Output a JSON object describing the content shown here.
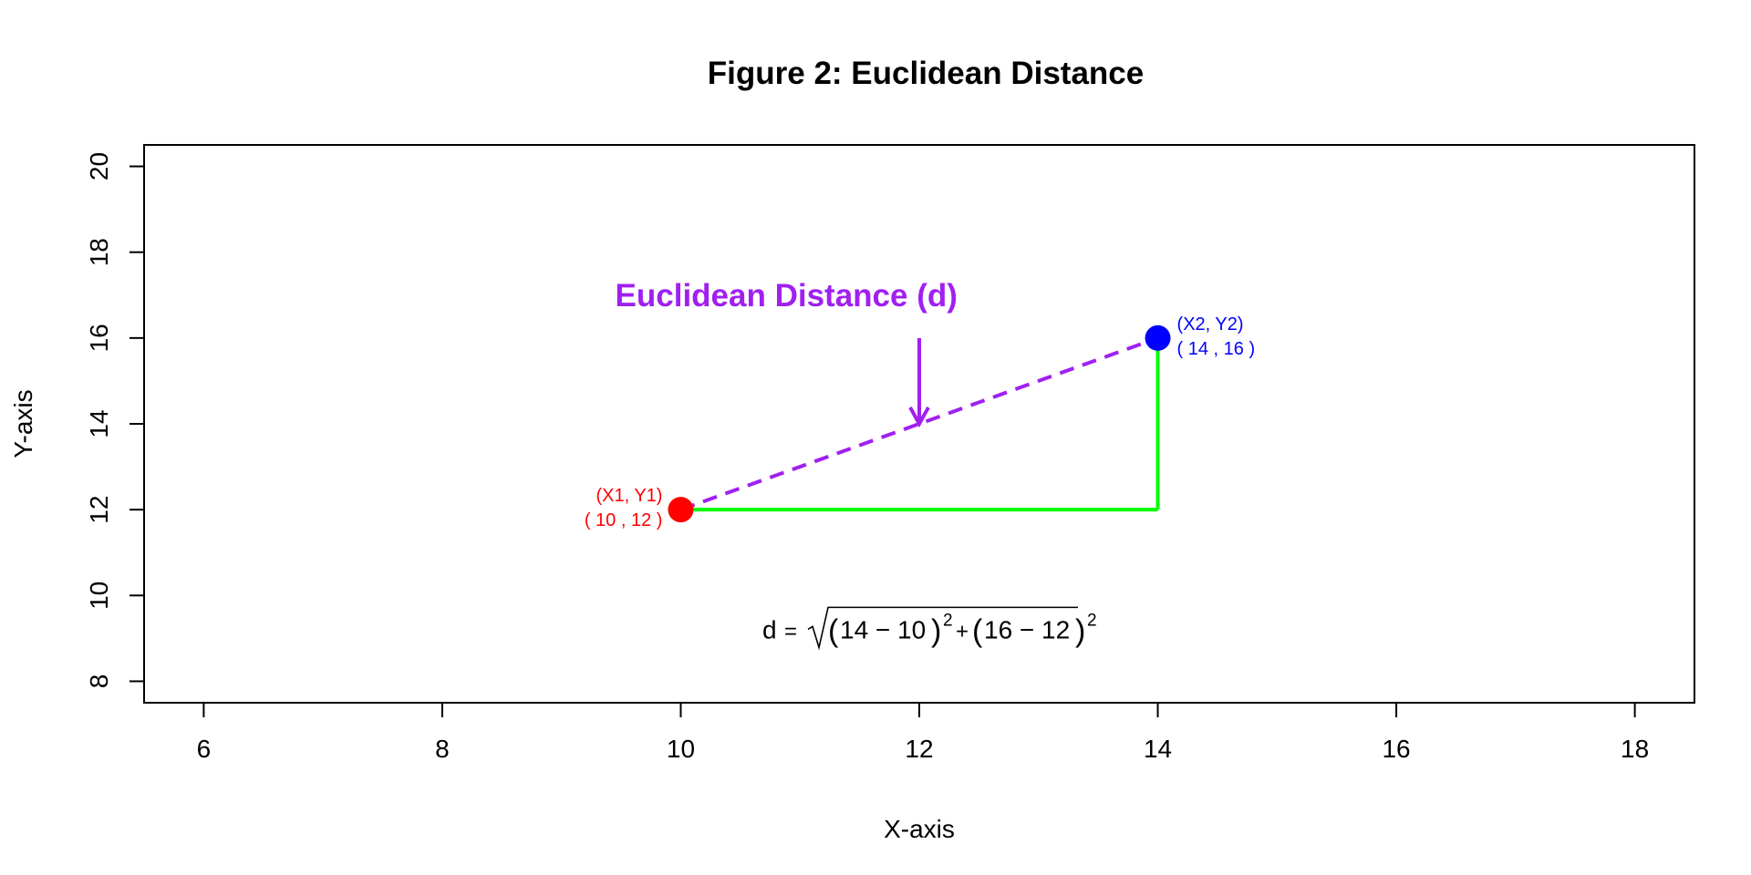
{
  "chart_data": {
    "type": "scatter",
    "title": "Figure 2: Euclidean Distance",
    "xlabel": "X-axis",
    "ylabel": "Y-axis",
    "xlim": [
      5.5,
      18.5
    ],
    "ylim": [
      7.5,
      20.5
    ],
    "x_ticks": [
      6,
      8,
      10,
      12,
      14,
      16,
      18
    ],
    "y_ticks": [
      8,
      10,
      12,
      14,
      16,
      18,
      20
    ],
    "grid": false,
    "points": [
      {
        "x": 10,
        "y": 12,
        "color": "#ff0000",
        "label_line1": "(X1, Y1)",
        "label_line2": "( 10 , 12 )"
      },
      {
        "x": 14,
        "y": 16,
        "color": "#0000ff",
        "label_line1": "(X2, Y2)",
        "label_line2": "( 14 , 16 )"
      }
    ],
    "segments": [
      {
        "from": [
          10,
          12
        ],
        "to": [
          14,
          12
        ],
        "color": "#00ff00",
        "style": "solid"
      },
      {
        "from": [
          14,
          12
        ],
        "to": [
          14,
          16
        ],
        "color": "#00ff00",
        "style": "solid"
      },
      {
        "from": [
          10,
          12
        ],
        "to": [
          14,
          16
        ],
        "color": "#a020f0",
        "style": "dashed"
      }
    ],
    "arrow": {
      "from": [
        12,
        16
      ],
      "to": [
        12,
        14
      ],
      "color": "#a020f0"
    },
    "annotation": {
      "text": "Euclidean Distance (d)",
      "x": 12,
      "y": 17,
      "color": "#a020f0"
    },
    "formula": {
      "x": 12,
      "y": 9,
      "text": "d = √((14 − 10)² + (16 − 12)²)",
      "lhs": "d",
      "a1": "14",
      "b1": "10",
      "a2": "16",
      "b2": "12",
      "exp": "2"
    }
  }
}
